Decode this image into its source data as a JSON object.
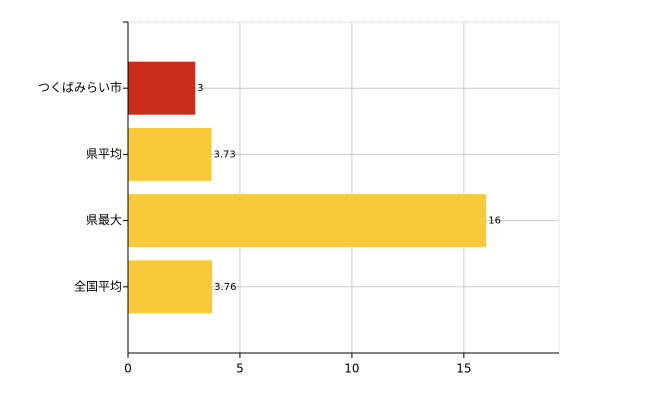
{
  "chart_data": {
    "type": "barh",
    "categories": [
      "つくばみらい市",
      "県平均",
      "県最大",
      "全国平均"
    ],
    "values": [
      3,
      3.73,
      16,
      3.76
    ],
    "colors": [
      "#cc2a1a",
      "#f9c93c",
      "#f9c93c",
      "#f9c93c"
    ],
    "xlim": [
      0,
      19.25
    ],
    "xticks": [
      0,
      5,
      10,
      15
    ],
    "grid": true
  }
}
